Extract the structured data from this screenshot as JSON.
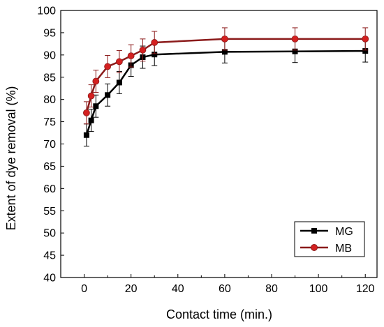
{
  "chart_data": {
    "type": "line",
    "title": "",
    "xlabel": "Contact time (min.)",
    "ylabel": "Extent of dye removal (%)",
    "xlim": [
      -10,
      125
    ],
    "ylim": [
      40,
      100
    ],
    "xticks": [
      0,
      20,
      40,
      60,
      80,
      100,
      120
    ],
    "yticks": [
      40,
      45,
      50,
      55,
      60,
      65,
      70,
      75,
      80,
      85,
      90,
      95,
      100
    ],
    "x": [
      1,
      3,
      5,
      10,
      15,
      20,
      25,
      30,
      60,
      90,
      120
    ],
    "series": [
      {
        "name": "MG",
        "color": "#000000",
        "marker": "square",
        "values": [
          72.0,
          75.3,
          78.5,
          81.0,
          83.8,
          87.7,
          89.5,
          90.1,
          90.7,
          90.8,
          90.9
        ],
        "errors": [
          2.5,
          2.5,
          2.5,
          2.5,
          2.5,
          2.5,
          2.5,
          2.5,
          2.5,
          2.5,
          2.5
        ]
      },
      {
        "name": "MB",
        "color": "#d42020",
        "line_color": "#8b1a1a",
        "marker": "circle",
        "values": [
          77.0,
          80.8,
          84.1,
          87.4,
          88.5,
          89.8,
          91.1,
          92.8,
          93.6,
          93.6,
          93.6
        ],
        "errors": [
          2.5,
          2.5,
          2.5,
          2.5,
          2.5,
          2.5,
          2.5,
          2.5,
          2.5,
          2.5,
          2.5
        ]
      }
    ],
    "legend_position": "bottom-right",
    "grid": false
  }
}
